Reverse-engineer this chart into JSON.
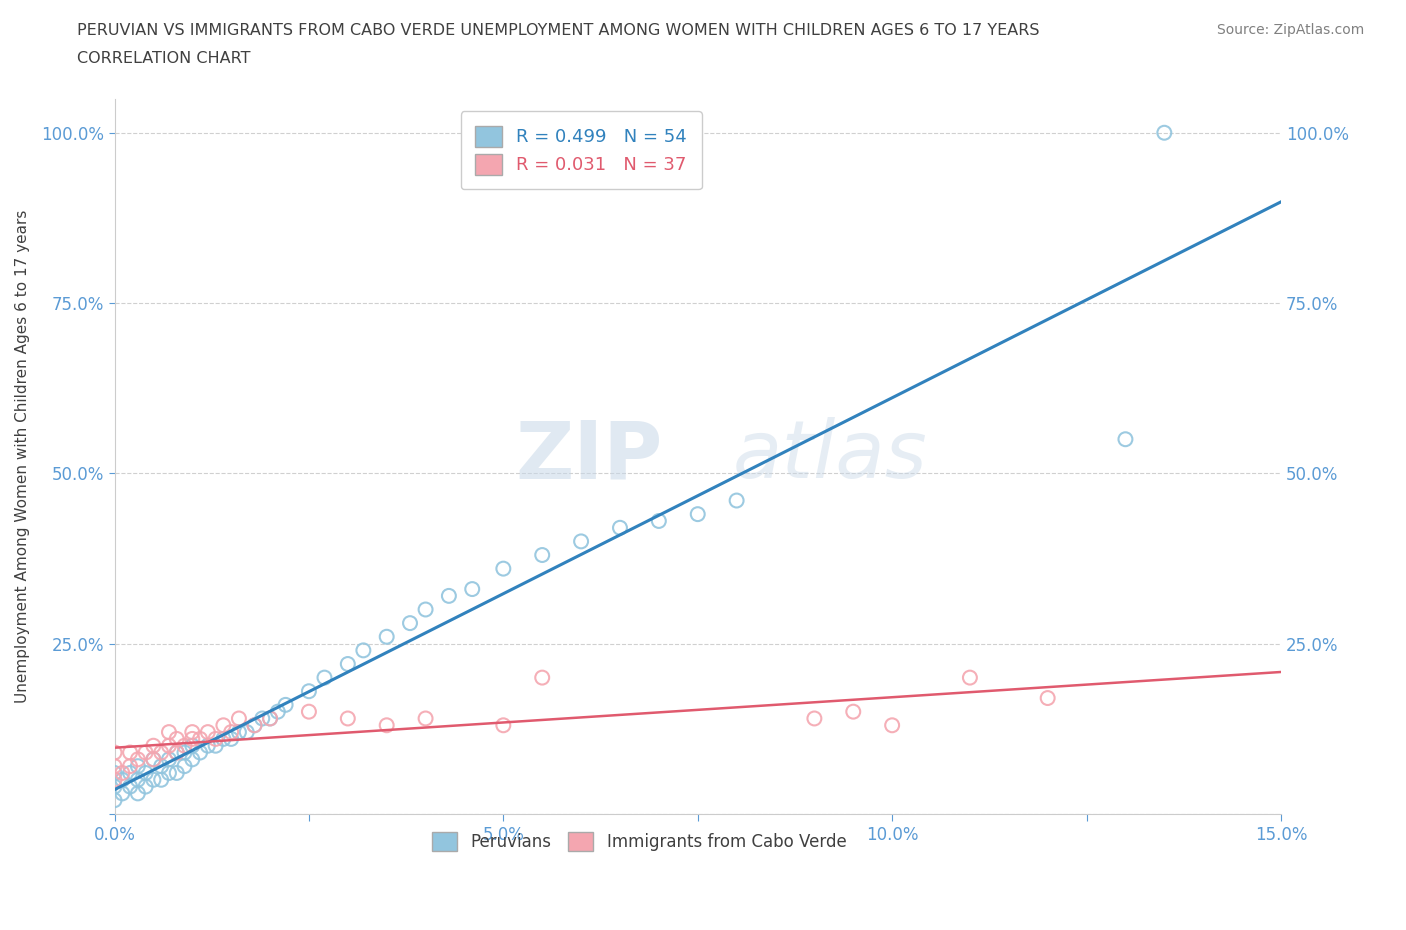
{
  "title_line1": "PERUVIAN VS IMMIGRANTS FROM CABO VERDE UNEMPLOYMENT AMONG WOMEN WITH CHILDREN AGES 6 TO 17 YEARS",
  "title_line2": "CORRELATION CHART",
  "source": "Source: ZipAtlas.com",
  "ylabel": "Unemployment Among Women with Children Ages 6 to 17 years",
  "xlim": [
    0.0,
    0.15
  ],
  "ylim": [
    0.0,
    1.05
  ],
  "xticks": [
    0.0,
    0.025,
    0.05,
    0.075,
    0.1,
    0.125,
    0.15
  ],
  "xticklabels": [
    "0.0%",
    "",
    "5.0%",
    "",
    "10.0%",
    "",
    "15.0%"
  ],
  "yticks": [
    0.0,
    0.25,
    0.5,
    0.75,
    1.0
  ],
  "yticklabels": [
    "",
    "25.0%",
    "50.0%",
    "75.0%",
    "100.0%"
  ],
  "peruvians_R": 0.499,
  "peruvians_N": 54,
  "caboverde_R": 0.031,
  "caboverde_N": 37,
  "blue_color": "#92c5de",
  "blue_line_color": "#3182bd",
  "pink_color": "#f4a6b0",
  "pink_line_color": "#e05a6e",
  "peruvians_x": [
    0.0,
    0.0,
    0.0,
    0.001,
    0.001,
    0.002,
    0.002,
    0.003,
    0.003,
    0.003,
    0.004,
    0.004,
    0.005,
    0.005,
    0.006,
    0.006,
    0.007,
    0.007,
    0.008,
    0.008,
    0.009,
    0.009,
    0.01,
    0.01,
    0.011,
    0.012,
    0.013,
    0.014,
    0.015,
    0.016,
    0.017,
    0.018,
    0.019,
    0.02,
    0.021,
    0.022,
    0.025,
    0.027,
    0.03,
    0.032,
    0.035,
    0.038,
    0.04,
    0.043,
    0.046,
    0.05,
    0.055,
    0.06,
    0.065,
    0.07,
    0.075,
    0.08,
    0.13,
    0.135
  ],
  "peruvians_y": [
    0.02,
    0.04,
    0.06,
    0.03,
    0.05,
    0.04,
    0.06,
    0.03,
    0.05,
    0.07,
    0.04,
    0.06,
    0.05,
    0.08,
    0.05,
    0.07,
    0.06,
    0.08,
    0.06,
    0.09,
    0.07,
    0.09,
    0.08,
    0.1,
    0.09,
    0.1,
    0.1,
    0.11,
    0.11,
    0.12,
    0.12,
    0.13,
    0.14,
    0.14,
    0.15,
    0.16,
    0.18,
    0.2,
    0.22,
    0.24,
    0.26,
    0.28,
    0.3,
    0.32,
    0.33,
    0.36,
    0.38,
    0.4,
    0.42,
    0.43,
    0.44,
    0.46,
    0.55,
    1.0
  ],
  "caboverde_x": [
    0.0,
    0.0,
    0.0,
    0.001,
    0.002,
    0.002,
    0.003,
    0.004,
    0.005,
    0.005,
    0.006,
    0.007,
    0.007,
    0.008,
    0.008,
    0.009,
    0.01,
    0.01,
    0.011,
    0.012,
    0.013,
    0.014,
    0.015,
    0.016,
    0.018,
    0.02,
    0.025,
    0.03,
    0.035,
    0.04,
    0.05,
    0.055,
    0.09,
    0.095,
    0.1,
    0.11,
    0.12
  ],
  "caboverde_y": [
    0.05,
    0.07,
    0.09,
    0.06,
    0.07,
    0.09,
    0.08,
    0.09,
    0.08,
    0.1,
    0.09,
    0.1,
    0.12,
    0.09,
    0.11,
    0.1,
    0.11,
    0.12,
    0.11,
    0.12,
    0.11,
    0.13,
    0.12,
    0.14,
    0.13,
    0.14,
    0.15,
    0.14,
    0.13,
    0.14,
    0.13,
    0.2,
    0.14,
    0.15,
    0.13,
    0.2,
    0.17
  ],
  "watermark_zip": "ZIP",
  "watermark_atlas": "atlas",
  "background_color": "#ffffff",
  "grid_color": "#d0d0d0",
  "axis_color": "#cccccc",
  "label_color": "#5b9bd5",
  "title_color": "#404040",
  "right_label_color": "#5b9bd5"
}
